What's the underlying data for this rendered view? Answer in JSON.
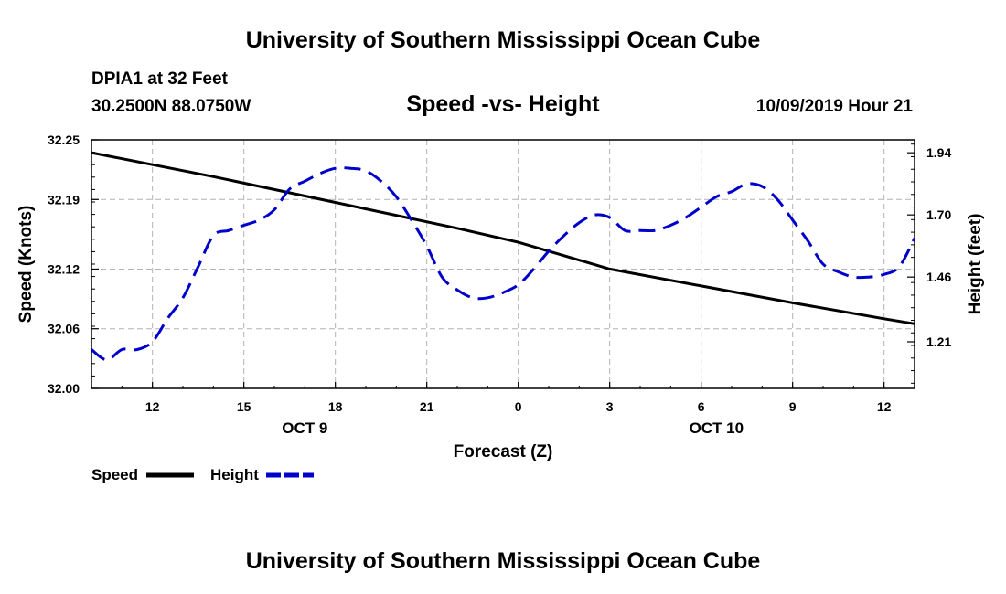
{
  "header": {
    "title": "University of Southern Mississippi Ocean Cube",
    "station": "DPIA1 at 32 Feet",
    "coords": "30.2500N 88.0750W",
    "subtitle": "Speed -vs- Height",
    "datetime": "10/09/2019 Hour 21"
  },
  "footer": {
    "title": "University of Southern Mississippi Ocean Cube"
  },
  "colors": {
    "speed": "#000000",
    "height": "#0000cc",
    "grid": "#b4b4b4"
  },
  "chart_data": {
    "type": "line",
    "title": "Speed -vs- Height",
    "xlabel": "Forecast (Z)",
    "ylabel_left": "Speed (Knots)",
    "ylabel_right": "Height (feet)",
    "x_unit": "hours since 10/09 00Z",
    "xlim": [
      10,
      37
    ],
    "ylim_left": [
      32.0,
      32.25
    ],
    "ylim_right": [
      1.03,
      1.99
    ],
    "x_ticks": [
      {
        "x": 12,
        "label": "12"
      },
      {
        "x": 15,
        "label": "15"
      },
      {
        "x": 18,
        "label": "18"
      },
      {
        "x": 21,
        "label": "21"
      },
      {
        "x": 24,
        "label": "0"
      },
      {
        "x": 27,
        "label": "3"
      },
      {
        "x": 30,
        "label": "6"
      },
      {
        "x": 33,
        "label": "9"
      },
      {
        "x": 36,
        "label": "12"
      }
    ],
    "date_labels": [
      {
        "x": 17,
        "label": "OCT 9"
      },
      {
        "x": 30.5,
        "label": "OCT 10"
      }
    ],
    "y_ticks_left": [
      {
        "v": 32.0,
        "label": "32.00"
      },
      {
        "v": 32.06,
        "label": "32.06"
      },
      {
        "v": 32.12,
        "label": "32.12"
      },
      {
        "v": 32.19,
        "label": "32.19"
      },
      {
        "v": 32.25,
        "label": "32.25"
      }
    ],
    "y_ticks_right": [
      {
        "v": 1.21,
        "label": "1.21"
      },
      {
        "v": 1.46,
        "label": "1.46"
      },
      {
        "v": 1.7,
        "label": "1.70"
      },
      {
        "v": 1.94,
        "label": "1.94"
      }
    ],
    "legend": [
      {
        "name": "Speed",
        "style": "solid"
      },
      {
        "name": "Height",
        "style": "dashed"
      }
    ],
    "series": [
      {
        "name": "Speed",
        "axis": "left",
        "style": "solid",
        "x": [
          10,
          14,
          18,
          22,
          24,
          27,
          30,
          33,
          36,
          37
        ],
        "values": [
          32.237,
          32.213,
          32.187,
          32.161,
          32.147,
          32.12,
          32.103,
          32.086,
          32.07,
          32.065
        ]
      },
      {
        "name": "Height",
        "axis": "right",
        "style": "dashed",
        "x": [
          10,
          10.5,
          11,
          11.5,
          12,
          12.5,
          13,
          13.5,
          14,
          14.5,
          15,
          15.5,
          16,
          16.5,
          17,
          17.5,
          18,
          18.5,
          19,
          19.5,
          20,
          20.5,
          21,
          21.5,
          22,
          22.5,
          23,
          23.5,
          24,
          24.5,
          25,
          25.5,
          26,
          26.5,
          27,
          27.5,
          28,
          28.5,
          29,
          29.5,
          30,
          30.5,
          31,
          31.5,
          32,
          32.5,
          33,
          33.5,
          34,
          34.5,
          35,
          35.5,
          36,
          36.5,
          37
        ],
        "values": [
          1.18,
          1.14,
          1.18,
          1.18,
          1.21,
          1.3,
          1.38,
          1.5,
          1.62,
          1.64,
          1.66,
          1.68,
          1.72,
          1.8,
          1.83,
          1.86,
          1.88,
          1.88,
          1.87,
          1.83,
          1.77,
          1.68,
          1.58,
          1.46,
          1.41,
          1.38,
          1.38,
          1.4,
          1.43,
          1.49,
          1.56,
          1.62,
          1.67,
          1.7,
          1.69,
          1.64,
          1.64,
          1.64,
          1.66,
          1.69,
          1.73,
          1.77,
          1.79,
          1.82,
          1.81,
          1.76,
          1.68,
          1.6,
          1.51,
          1.48,
          1.46,
          1.46,
          1.47,
          1.5,
          1.61
        ]
      }
    ]
  }
}
